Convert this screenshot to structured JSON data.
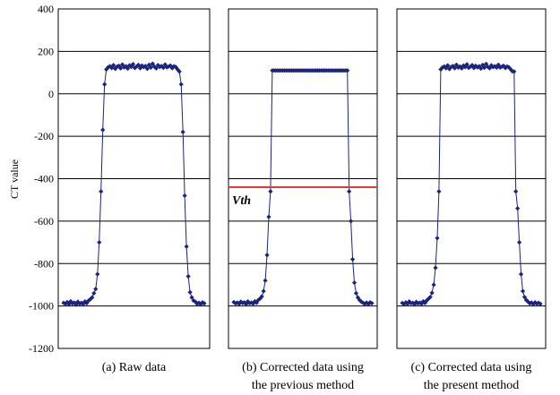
{
  "chart_data": [
    {
      "type": "line",
      "caption": "(a) Raw data",
      "ylabel": "CT value",
      "ylim": [
        -1200,
        400
      ],
      "yticks": [
        400,
        200,
        0,
        -200,
        -400,
        -600,
        -800,
        -1000,
        -1200
      ],
      "grid": true,
      "color": "#1a237e",
      "series": [
        {
          "x": [
            0,
            1,
            2,
            3,
            4,
            5,
            6,
            7,
            8,
            9,
            10,
            11,
            12,
            13,
            14,
            15,
            16,
            17,
            18,
            19,
            20,
            21,
            22,
            23,
            24,
            25,
            26,
            27,
            28,
            29,
            30,
            31,
            32,
            33,
            34,
            35,
            36,
            37,
            38,
            39,
            40,
            41,
            42,
            43,
            44,
            45,
            46,
            47,
            48,
            49,
            50,
            51,
            52,
            53,
            54,
            55,
            56,
            57,
            58,
            59,
            60,
            61,
            62,
            63,
            64,
            65,
            66,
            67,
            68,
            69,
            70,
            71,
            72,
            73,
            74,
            75,
            76,
            77,
            78,
            79
          ],
          "y": [
            -985,
            -990,
            -982,
            -992,
            -978,
            -988,
            -984,
            -993,
            -980,
            -989,
            -985,
            -991,
            -979,
            -987,
            -975,
            -968,
            -960,
            -940,
            -920,
            -850,
            -700,
            -460,
            -170,
            45,
            115,
            125,
            130,
            122,
            135,
            118,
            128,
            132,
            120,
            138,
            125,
            130,
            119,
            134,
            127,
            140,
            122,
            129,
            136,
            121,
            133,
            126,
            131,
            118,
            137,
            124,
            142,
            128,
            120,
            135,
            127,
            131,
            123,
            138,
            125,
            129,
            133,
            121,
            130,
            126,
            115,
            105,
            45,
            -180,
            -480,
            -720,
            -860,
            -935,
            -960,
            -975,
            -980,
            -990,
            -985,
            -992,
            -983,
            -988
          ]
        }
      ]
    },
    {
      "type": "line",
      "caption": [
        "(b) Corrected data using",
        "the previous method"
      ],
      "ylim": [
        -1200,
        400
      ],
      "grid": true,
      "color": "#1a237e",
      "threshold": {
        "label": "Vth",
        "value": -440,
        "color": "#e53935"
      },
      "series": [
        {
          "x": [
            0,
            1,
            2,
            3,
            4,
            5,
            6,
            7,
            8,
            9,
            10,
            11,
            12,
            13,
            14,
            15,
            16,
            17,
            18,
            19,
            20,
            21,
            22,
            23,
            24,
            25,
            26,
            27,
            28,
            29,
            30,
            31,
            32,
            33,
            34,
            35,
            36,
            37,
            38,
            39,
            40,
            41,
            42,
            43,
            44,
            45,
            46,
            47,
            48,
            49,
            50,
            51,
            52,
            53,
            54,
            55,
            56,
            57,
            58,
            59,
            60,
            61,
            62,
            63,
            64,
            65,
            66,
            67,
            68,
            69,
            70,
            71,
            72,
            73,
            74,
            75,
            76,
            77,
            78,
            79
          ],
          "y": [
            -982,
            -988,
            -984,
            -990,
            -980,
            -986,
            -983,
            -991,
            -979,
            -987,
            -984,
            -989,
            -978,
            -985,
            -972,
            -965,
            -955,
            -930,
            -880,
            -760,
            -580,
            -460,
            110,
            110,
            110,
            110,
            110,
            110,
            110,
            110,
            110,
            110,
            110,
            110,
            110,
            110,
            110,
            110,
            110,
            110,
            110,
            110,
            110,
            110,
            110,
            110,
            110,
            110,
            110,
            110,
            110,
            110,
            110,
            110,
            110,
            110,
            110,
            110,
            110,
            110,
            110,
            110,
            110,
            110,
            110,
            110,
            -460,
            -600,
            -780,
            -890,
            -940,
            -960,
            -972,
            -980,
            -985,
            -990,
            -984,
            -991,
            -983,
            -987
          ]
        }
      ]
    },
    {
      "type": "line",
      "caption": [
        "(c) Corrected data using",
        "the present method"
      ],
      "ylim": [
        -1200,
        400
      ],
      "grid": true,
      "color": "#1a237e",
      "series": [
        {
          "x": [
            0,
            1,
            2,
            3,
            4,
            5,
            6,
            7,
            8,
            9,
            10,
            11,
            12,
            13,
            14,
            15,
            16,
            17,
            18,
            19,
            20,
            21,
            22,
            23,
            24,
            25,
            26,
            27,
            28,
            29,
            30,
            31,
            32,
            33,
            34,
            35,
            36,
            37,
            38,
            39,
            40,
            41,
            42,
            43,
            44,
            45,
            46,
            47,
            48,
            49,
            50,
            51,
            52,
            53,
            54,
            55,
            56,
            57,
            58,
            59,
            60,
            61,
            62,
            63,
            64,
            65,
            66,
            67,
            68,
            69,
            70,
            71,
            72,
            73,
            74,
            75,
            76,
            77,
            78,
            79
          ],
          "y": [
            -986,
            -991,
            -983,
            -990,
            -979,
            -987,
            -985,
            -992,
            -981,
            -988,
            -984,
            -990,
            -978,
            -986,
            -974,
            -966,
            -958,
            -938,
            -900,
            -820,
            -680,
            -460,
            115,
            124,
            129,
            121,
            134,
            117,
            127,
            131,
            121,
            137,
            124,
            129,
            120,
            133,
            126,
            139,
            123,
            128,
            135,
            122,
            132,
            125,
            130,
            119,
            136,
            123,
            141,
            127,
            121,
            134,
            126,
            130,
            124,
            137,
            124,
            128,
            132,
            122,
            129,
            125,
            116,
            106,
            105,
            -460,
            -540,
            -700,
            -850,
            -930,
            -958,
            -972,
            -980,
            -988,
            -984,
            -991,
            -983,
            -989,
            -985,
            -990
          ]
        }
      ]
    }
  ]
}
